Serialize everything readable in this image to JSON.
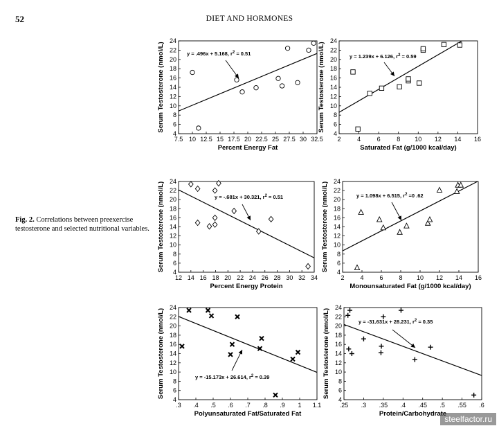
{
  "header": {
    "page_number": "52",
    "running_head": "DIET AND HORMONES"
  },
  "caption": {
    "label": "Fig. 2.",
    "text": "Correlations between preexercise testosterone and selected nutritional variables."
  },
  "watermark": "steelfactor.ru",
  "chart_data": [
    {
      "type": "scatter",
      "marker": "circle",
      "xlabel": "Percent Energy Fat",
      "ylabel": "Serum Testosterone (nmol/L)",
      "xlim": [
        7.5,
        32.5
      ],
      "ylim": [
        4,
        24
      ],
      "xticks": [
        "7.5",
        "10",
        "12.5",
        "15",
        "17.5",
        "20",
        "22.5",
        "25",
        "27.5",
        "30",
        "32.5"
      ],
      "yticks": [
        "4",
        "6",
        "8",
        "10",
        "12",
        "14",
        "16",
        "18",
        "20",
        "22",
        "24"
      ],
      "points": [
        [
          10,
          17.2
        ],
        [
          11.1,
          5.2
        ],
        [
          18,
          15.6
        ],
        [
          19,
          13
        ],
        [
          21.5,
          13.9
        ],
        [
          25.5,
          15.9
        ],
        [
          26.2,
          14.3
        ],
        [
          27.2,
          22.4
        ],
        [
          29,
          15
        ],
        [
          31,
          22
        ],
        [
          31.9,
          23.5
        ]
      ],
      "fit": {
        "slope": 0.496,
        "intercept": 5.168
      },
      "equation": "y = .496x + 5.168, r",
      "equation_sup": "2",
      "equation_tail": " = 0.51"
    },
    {
      "type": "scatter",
      "marker": "square",
      "xlabel": "Saturated Fat (g/1000 kcal/day)",
      "ylabel": "Serum Testosterone (nmol/L)",
      "xlim": [
        2,
        16
      ],
      "ylim": [
        4,
        24
      ],
      "xticks": [
        "2",
        "4",
        "6",
        "8",
        "10",
        "12",
        "14",
        "16"
      ],
      "yticks": [
        "4",
        "6",
        "8",
        "10",
        "12",
        "14",
        "16",
        "18",
        "20",
        "22",
        "24"
      ],
      "points": [
        [
          3.4,
          17.3
        ],
        [
          3.9,
          5
        ],
        [
          5.1,
          12.7
        ],
        [
          6.3,
          13.8
        ],
        [
          8.1,
          14.1
        ],
        [
          9,
          15.4
        ],
        [
          9,
          15.8
        ],
        [
          10.1,
          14.9
        ],
        [
          10.5,
          22
        ],
        [
          10.5,
          22.3
        ],
        [
          12.6,
          23.2
        ],
        [
          14.2,
          23.1
        ]
      ],
      "fit": {
        "slope": 1.239,
        "intercept": 6.126
      },
      "equation": "y = 1.239x + 6.126, r",
      "equation_sup": "2",
      "equation_tail": " = 0.59"
    },
    {
      "type": "scatter",
      "marker": "diamond",
      "xlabel": "Percent Energy Protein",
      "ylabel": "Serum Testosterone (nmol/L)",
      "xlim": [
        12,
        34
      ],
      "ylim": [
        4,
        24
      ],
      "xticks": [
        "12",
        "14",
        "16",
        "18",
        "20",
        "22",
        "24",
        "26",
        "28",
        "30",
        "32",
        "34"
      ],
      "yticks": [
        "4",
        "6",
        "8",
        "10",
        "12",
        "14",
        "16",
        "18",
        "20",
        "22",
        "24"
      ],
      "points": [
        [
          14,
          23.4
        ],
        [
          15.1,
          22.4
        ],
        [
          15.1,
          14.9
        ],
        [
          17,
          14.1
        ],
        [
          17.9,
          22
        ],
        [
          17.9,
          16
        ],
        [
          17.9,
          14.5
        ],
        [
          18.5,
          23.6
        ],
        [
          21,
          17.5
        ],
        [
          25,
          13
        ],
        [
          27,
          15.7
        ],
        [
          33,
          5.3
        ]
      ],
      "fit": {
        "slope": -0.681,
        "intercept": 30.321
      },
      "equation": "y = -.681x + 30.321, r",
      "equation_sup": "2",
      "equation_tail": " = 0.51"
    },
    {
      "type": "scatter",
      "marker": "triangle",
      "xlabel": "Monounsaturated Fat (g/1000 kcal/day)",
      "ylabel": "Serum Testosterone (nmol/L)",
      "xlim": [
        2,
        16
      ],
      "ylim": [
        4,
        24
      ],
      "xticks": [
        "2",
        "4",
        "6",
        "8",
        "10",
        "12",
        "14",
        "16"
      ],
      "yticks": [
        "4",
        "6",
        "8",
        "10",
        "12",
        "14",
        "16",
        "18",
        "20",
        "22",
        "24"
      ],
      "points": [
        [
          3.5,
          5
        ],
        [
          3.9,
          17.2
        ],
        [
          5.8,
          15.6
        ],
        [
          6.2,
          13.8
        ],
        [
          7.9,
          12.8
        ],
        [
          8.6,
          14.2
        ],
        [
          10.8,
          14.8
        ],
        [
          11,
          15.6
        ],
        [
          12,
          22.1
        ],
        [
          13.8,
          21.8
        ],
        [
          13.9,
          23.2
        ],
        [
          14.2,
          23.2
        ]
      ],
      "fit": {
        "slope": 1.098,
        "intercept": 6.515
      },
      "equation": "y = 1.098x + 6.515, r",
      "equation_sup": "2",
      "equation_tail": " =0 .62"
    },
    {
      "type": "scatter",
      "marker": "x",
      "xlabel": "Polyunsaturated Fat/Saturated Fat",
      "ylabel": "Serum Testosterone (nmol/L)",
      "xlim": [
        0.3,
        1.1
      ],
      "ylim": [
        4,
        24
      ],
      "xticks": [
        ".3",
        ".4",
        ".5",
        ".6",
        ".7",
        ".8",
        ".9",
        "1",
        "1.1"
      ],
      "yticks": [
        "4",
        "6",
        "8",
        "10",
        "12",
        "14",
        "16",
        "18",
        "20",
        "22",
        "24"
      ],
      "points": [
        [
          0.32,
          15.6
        ],
        [
          0.36,
          23.4
        ],
        [
          0.47,
          23.4
        ],
        [
          0.49,
          22.2
        ],
        [
          0.6,
          13.8
        ],
        [
          0.61,
          16
        ],
        [
          0.64,
          22
        ],
        [
          0.77,
          15.1
        ],
        [
          0.78,
          17.3
        ],
        [
          0.86,
          5
        ],
        [
          0.96,
          12.8
        ],
        [
          0.99,
          14.3
        ]
      ],
      "fit": {
        "slope": -15.173,
        "intercept": 26.614
      },
      "equation": "y = -15.173x + 26.614, r",
      "equation_sup": "2",
      "equation_tail": " = 0.39"
    },
    {
      "type": "scatter",
      "marker": "plus",
      "xlabel": "Protein/Carbohydrate",
      "ylabel": "Serum Testosterone (nmol/L)",
      "xlim": [
        0.25,
        0.6
      ],
      "ylim": [
        4,
        24
      ],
      "xticks": [
        ".25",
        ".3",
        ".35",
        ".4",
        ".45",
        ".5",
        ".55",
        ".6"
      ],
      "yticks": [
        "4",
        "6",
        "8",
        "10",
        "12",
        "14",
        "16",
        "18",
        "20",
        "22",
        "24"
      ],
      "points": [
        [
          0.26,
          22.3
        ],
        [
          0.265,
          23.4
        ],
        [
          0.262,
          15
        ],
        [
          0.27,
          14
        ],
        [
          0.3,
          17.2
        ],
        [
          0.345,
          15.6
        ],
        [
          0.344,
          14.2
        ],
        [
          0.35,
          22
        ],
        [
          0.395,
          23.4
        ],
        [
          0.43,
          12.7
        ],
        [
          0.47,
          15.4
        ],
        [
          0.58,
          5
        ]
      ],
      "fit": {
        "slope": -31.631,
        "intercept": 28.231
      },
      "equation": "y = -31.631x + 28.231, r",
      "equation_sup": "2",
      "equation_tail": " = 0.35"
    }
  ]
}
